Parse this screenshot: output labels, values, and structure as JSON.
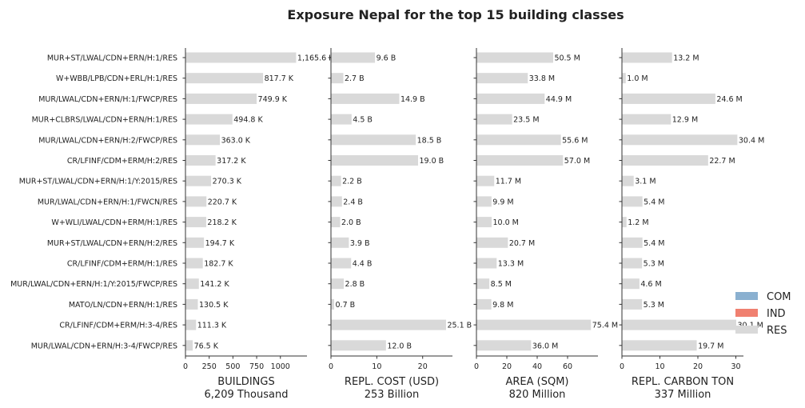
{
  "chart_data": {
    "type": "bar",
    "orientation": "horizontal",
    "title": "Exposure Nepal for the top 15 building classes",
    "categories": [
      "MUR+ST/LWAL/CDN+ERN/H:1/RES",
      "W+WBB/LPB/CDN+ERL/H:1/RES",
      "MUR/LWAL/CDN+ERN/H:1/FWCP/RES",
      "MUR+CLBRS/LWAL/CDN+ERN/H:1/RES",
      "MUR/LWAL/CDN+ERN/H:2/FWCP/RES",
      "CR/LFINF/CDM+ERM/H:2/RES",
      "MUR+ST/LWAL/CDN+ERN/H:1/Y:2015/RES",
      "MUR/LWAL/CDN+ERN/H:1/FWCN/RES",
      "W+WLI/LWAL/CDN+ERM/H:1/RES",
      "MUR+ST/LWAL/CDN+ERN/H:2/RES",
      "CR/LFINF/CDM+ERM/H:1/RES",
      "MUR/LWAL/CDN+ERN/H:1/Y:2015/FWCP/RES",
      "MATO/LN/CDN+ERN/H:1/RES",
      "CR/LFINF/CDM+ERM/H:3-4/RES",
      "MUR/LWAL/CDN+ERN/H:3-4/FWCP/RES"
    ],
    "panels": [
      {
        "xlabel": "BUILDINGS",
        "total": "6,209 Thousand",
        "xlim": [
          0,
          1280
        ],
        "ticks": [
          0,
          250,
          500,
          750,
          1000
        ],
        "tick_labels": [
          "0",
          "250",
          "500",
          "750",
          "1000"
        ],
        "values": [
          1165.6,
          817.7,
          749.9,
          494.8,
          363.0,
          317.2,
          270.3,
          220.7,
          218.2,
          194.7,
          182.7,
          141.2,
          130.5,
          111.3,
          76.5
        ],
        "value_labels": [
          "1,165.6 K",
          "817.7 K",
          "749.9 K",
          "494.8 K",
          "363.0 K",
          "317.2 K",
          "270.3 K",
          "220.7 K",
          "218.2 K",
          "194.7 K",
          "182.7 K",
          "141.2 K",
          "130.5 K",
          "111.3 K",
          "76.5 K"
        ]
      },
      {
        "xlabel": "REPL. COST (USD)",
        "total": "253 Billion",
        "xlim": [
          0,
          26.5
        ],
        "ticks": [
          0,
          10,
          20
        ],
        "tick_labels": [
          "0",
          "10",
          "20"
        ],
        "values": [
          9.6,
          2.7,
          14.9,
          4.5,
          18.5,
          19.0,
          2.2,
          2.4,
          2.0,
          3.9,
          4.4,
          2.8,
          0.7,
          25.1,
          12.0
        ],
        "value_labels": [
          "9.6 B",
          "2.7 B",
          "14.9 B",
          "4.5 B",
          "18.5 B",
          "19.0 B",
          "2.2 B",
          "2.4 B",
          "2.0 B",
          "3.9 B",
          "4.4 B",
          "2.8 B",
          "0.7 B",
          "25.1 B",
          "12.0 B"
        ]
      },
      {
        "xlabel": "AREA (SQM)",
        "total": "820 Million",
        "xlim": [
          0,
          80
        ],
        "ticks": [
          0,
          20,
          40,
          60
        ],
        "tick_labels": [
          "0",
          "20",
          "40",
          "60"
        ],
        "values": [
          50.5,
          33.8,
          44.9,
          23.5,
          55.6,
          57.0,
          11.7,
          9.9,
          10.0,
          20.7,
          13.3,
          8.5,
          9.8,
          75.4,
          36.0
        ],
        "value_labels": [
          "50.5 M",
          "33.8 M",
          "44.9 M",
          "23.5 M",
          "55.6 M",
          "57.0 M",
          "11.7 M",
          "9.9 M",
          "10.0 M",
          "20.7 M",
          "13.3 M",
          "8.5 M",
          "9.8 M",
          "75.4 M",
          "36.0 M"
        ]
      },
      {
        "xlabel": "REPL. CARBON TON",
        "total": "337 Million",
        "xlim": [
          0,
          32
        ],
        "ticks": [
          0,
          10,
          20,
          30
        ],
        "tick_labels": [
          "0",
          "10",
          "20",
          "30"
        ],
        "values": [
          13.2,
          1.0,
          24.6,
          12.9,
          30.4,
          22.7,
          3.1,
          5.4,
          1.2,
          5.4,
          5.3,
          4.6,
          5.3,
          30.1,
          19.7
        ],
        "value_labels": [
          "13.2 M",
          "1.0 M",
          "24.6 M",
          "12.9 M",
          "30.4 M",
          "22.7 M",
          "3.1 M",
          "5.4 M",
          "1.2 M",
          "5.4 M",
          "5.3 M",
          "4.6 M",
          "5.3 M",
          "30.1 M",
          "19.7 M"
        ]
      }
    ],
    "legend": {
      "placement": "right",
      "entries": [
        {
          "label": "COM",
          "color": "#8ab0d0"
        },
        {
          "label": "IND",
          "color": "#f08070"
        },
        {
          "label": "RES",
          "color": "#d9d9d9"
        }
      ]
    },
    "bar_color": "#d9d9d9",
    "grid": false
  }
}
